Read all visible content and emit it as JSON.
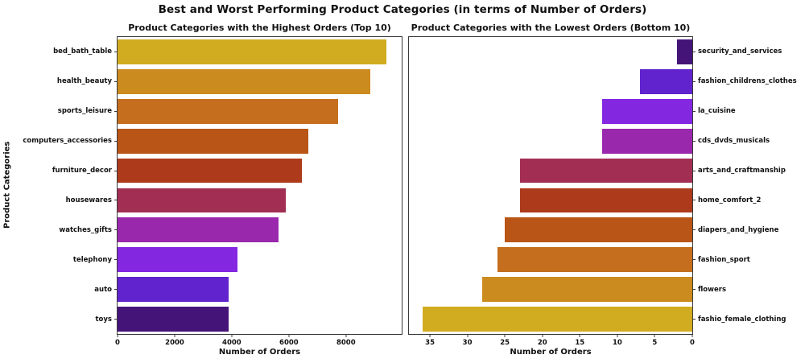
{
  "figure": {
    "title": "Best and Worst Performing Product Categories (in terms of Number of Orders)",
    "background_color": "#ffffff",
    "spine_color": "#3a3a3a"
  },
  "chart_data": [
    {
      "type": "bar",
      "orientation": "horizontal",
      "title": "Product Categories with the Highest Orders (Top 10)",
      "xlabel": "Number of Orders",
      "ylabel": "Product Categories",
      "category_side": "left",
      "x_inverted": false,
      "grid": false,
      "legend": false,
      "xlim": [
        0,
        9950
      ],
      "xticks": [
        0,
        2000,
        4000,
        6000,
        8000
      ],
      "categories": [
        "bed_bath_table",
        "health_beauty",
        "sports_leisure",
        "computers_accessories",
        "furniture_decor",
        "housewares",
        "watches_gifts",
        "telephony",
        "auto",
        "toys"
      ],
      "values": [
        9417,
        8836,
        7720,
        6689,
        6449,
        5884,
        5624,
        4199,
        3897,
        3886
      ],
      "colors": [
        "#d2ac20",
        "#cc8b1e",
        "#c56f1e",
        "#b95517",
        "#ad3a1b",
        "#a22e53",
        "#9928ac",
        "#8327e0",
        "#6023cd",
        "#451478"
      ]
    },
    {
      "type": "bar",
      "orientation": "horizontal",
      "title": "Product Categories with the Lowest Orders (Bottom 10)",
      "xlabel": "Number of Orders",
      "ylabel": "",
      "category_side": "right",
      "x_inverted": true,
      "grid": false,
      "legend": false,
      "xlim": [
        37.8,
        0
      ],
      "xticks": [
        35,
        30,
        25,
        20,
        15,
        10,
        5,
        0
      ],
      "categories": [
        "security_and_services",
        "fashion_childrens_clothes",
        "la_cuisine",
        "cds_dvds_musicals",
        "arts_and_craftmanship",
        "home_comfort_2",
        "diapers_and_hygiene",
        "fashion_sport",
        "flowers",
        "fashio_female_clothing"
      ],
      "values": [
        2,
        7,
        12,
        12,
        23,
        23,
        25,
        26,
        28,
        36
      ],
      "colors": [
        "#451478",
        "#6023cd",
        "#8327e0",
        "#9928ac",
        "#a22e53",
        "#ad3a1b",
        "#b95517",
        "#c56f1e",
        "#cc8b1e",
        "#d2ac20"
      ]
    }
  ]
}
